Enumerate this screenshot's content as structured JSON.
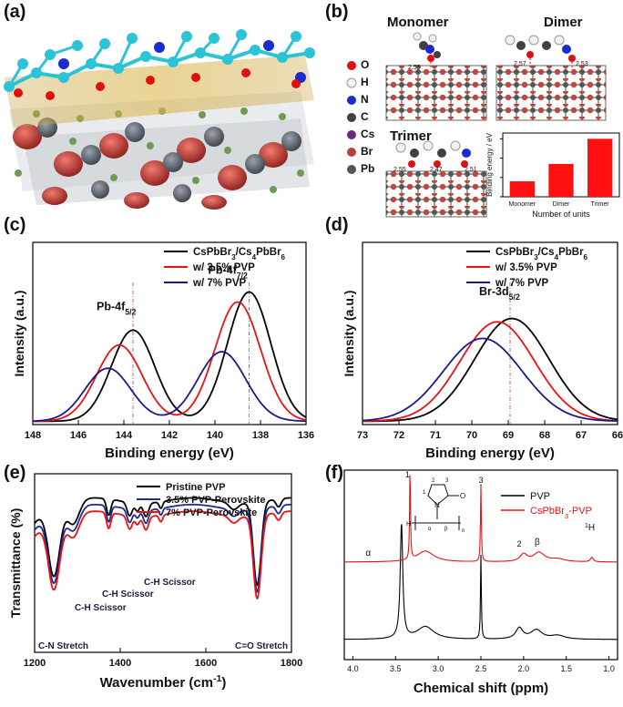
{
  "panels": {
    "a": {
      "label": "(a)"
    },
    "b": {
      "label": "(b)",
      "titles": {
        "monomer": "Monomer",
        "dimer": "Dimer",
        "trimer": "Trimer"
      },
      "distances": {
        "m1": "2.55",
        "d1": "2.57",
        "d2": "2.53",
        "t1": "2.55",
        "t2": "2.47",
        "t3": "2.51"
      },
      "legend": [
        {
          "sym": "O",
          "color": "#e01010"
        },
        {
          "sym": "H",
          "color": "#f2f2f2"
        },
        {
          "sym": "N",
          "color": "#1a2bd0"
        },
        {
          "sym": "C",
          "color": "#404040"
        },
        {
          "sym": "Cs",
          "color": "#6a2a7a"
        },
        {
          "sym": "Br",
          "color": "#b8433b"
        },
        {
          "sym": "Pb",
          "color": "#555555"
        }
      ],
      "inset_chart": {
        "type": "bar",
        "categories": [
          "Monomer",
          "Dimer",
          "Trimer"
        ],
        "values": [
          0.8,
          1.7,
          3.0
        ],
        "ylabel": "Binding energy / eV",
        "xlabel": "Number of units",
        "ylim": [
          0,
          3.3
        ],
        "bar_color": "#ff1010"
      }
    },
    "c": {
      "label": "(c)",
      "chart_data": {
        "type": "line",
        "xlabel": "Binding energy (eV)",
        "ylabel": "Intensity (a.u.)",
        "xlim": [
          148,
          136
        ],
        "xticks": [
          148,
          146,
          144,
          142,
          140,
          138,
          136
        ],
        "ylim": [
          0,
          1.1
        ],
        "series": [
          {
            "name_main": "CsPbBr",
            "name_s1": "3",
            "name_mid": "/Cs",
            "name_s2": "4",
            "name_mid2": "PbBr",
            "name_s3": "6",
            "color": "#000000",
            "peaks": [
              [
                143.6,
                0.55,
                0.95
              ],
              [
                138.5,
                0.78,
                0.95
              ]
            ]
          },
          {
            "name": "w/ 3.5% PVP",
            "color": "#ee1111",
            "peaks": [
              [
                144.2,
                0.46,
                1.0
              ],
              [
                139.0,
                0.72,
                1.0
              ]
            ]
          },
          {
            "name": "w/ 7% PVP",
            "color": "#1a1a8c",
            "peaks": [
              [
                144.7,
                0.32,
                1.0
              ],
              [
                139.7,
                0.42,
                1.05
              ]
            ]
          }
        ],
        "annotations": {
          "pb52": "Pb-4f",
          "pb52_sub": "5/2",
          "pb72": "Pb-4f",
          "pb72_sub": "7/2"
        },
        "dashlines": [
          143.6,
          138.5
        ]
      }
    },
    "d": {
      "label": "(d)",
      "chart_data": {
        "type": "line",
        "xlabel": "Binding energy (eV)",
        "ylabel": "Intensity (a.u.)",
        "xlim": [
          73,
          66
        ],
        "xticks": [
          73,
          72,
          71,
          70,
          69,
          68,
          67,
          66
        ],
        "ylim": [
          0,
          1.1
        ],
        "series": [
          {
            "name_main": "CsPbBr",
            "name_s1": "3",
            "name_mid": "/Cs",
            "name_s2": "4",
            "name_mid2": "PbBr",
            "name_s3": "6",
            "color": "#000000",
            "peaks": [
              [
                68.9,
                0.62,
                1.02
              ]
            ]
          },
          {
            "name": "w/ 3.5% PVP",
            "color": "#ee1111",
            "peaks": [
              [
                69.3,
                0.6,
                1.02
              ]
            ]
          },
          {
            "name": "w/ 7% PVP",
            "color": "#1a1a8c",
            "peaks": [
              [
                69.7,
                0.5,
                1.08
              ]
            ]
          }
        ],
        "annotations": {
          "br": "Br-3d",
          "br_sub": "5/2"
        },
        "dashlines": [
          68.95
        ]
      }
    },
    "e": {
      "label": "(e)",
      "chart_data": {
        "type": "line",
        "xlabel": "Wavenumber (cm",
        "xlabel_sup": "-1",
        "xlabel_end": ")",
        "ylabel": "Transmittance (%)",
        "xlim": [
          1200,
          1800
        ],
        "xticks": [
          1200,
          1400,
          1600,
          1800
        ],
        "series": [
          {
            "name": "Pristine PVP",
            "color": "#000000",
            "offset": 0
          },
          {
            "name": "3.5% PVP-Perovskite",
            "color": "#1a2b9c",
            "offset": 0.05
          },
          {
            "name": "7% PVP-Perovskite",
            "color": "#ee1111",
            "offset": 0.1
          }
        ],
        "annotations": {
          "cn": "C-N Stretch",
          "ch1": "C-H Scissor",
          "ch2": "C-H Scissor",
          "ch3": "C-H Scissor",
          "co": "C=O Stretch"
        }
      }
    },
    "f": {
      "label": "(f)",
      "chart_data": {
        "type": "line",
        "xlabel": "Chemical shift (ppm)",
        "xlim": [
          4.1,
          0.9
        ],
        "xticks": [
          4.0,
          3.5,
          3.0,
          2.5,
          2.0,
          1.5,
          1.0
        ],
        "xtick_labels": [
          "4.0",
          "3.5",
          "3.0",
          "2.5",
          "2.0",
          "1.5",
          "1.0"
        ],
        "series": [
          {
            "name": "PVP",
            "color": "#000000"
          },
          {
            "name_main": "CsPbBr",
            "name_s1": "3",
            "name_end": "-PVP",
            "color": "#ee1111"
          }
        ],
        "annotations": {
          "p1": "1",
          "p2": "2",
          "p3": "3",
          "alpha": "α",
          "beta": "β",
          "nucleus": "1",
          "nucleus_end": "H",
          "struct_n": "N",
          "struct_o": "O",
          "struct_h": "H",
          "struct_a": "α",
          "struct_b": "β",
          "struct_n2": "n",
          "s1": "1",
          "s2": "2",
          "s3": "3"
        }
      }
    }
  }
}
